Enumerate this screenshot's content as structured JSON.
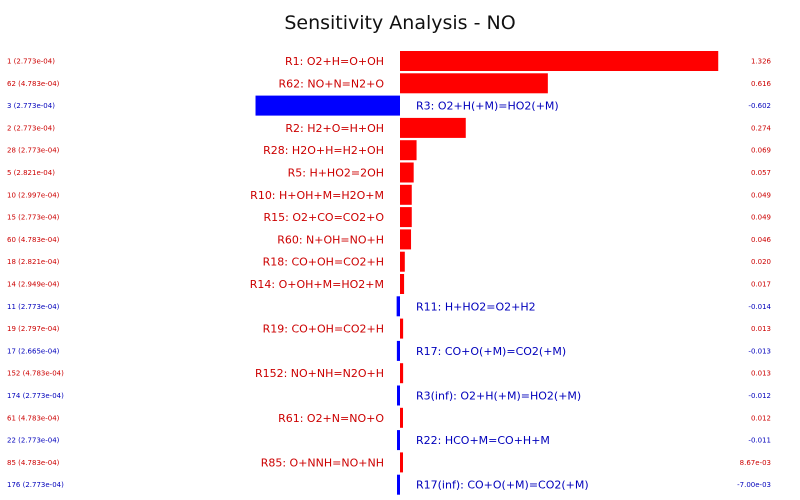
{
  "colors": {
    "positive": "#ff0000",
    "negative": "#0000ff",
    "text_pos": "#cc0000",
    "text_neg": "#0000bb"
  },
  "chart_data": {
    "type": "bar",
    "orientation": "horizontal",
    "title": "Sensitivity Analysis - NO",
    "xlim": [
      -0.602,
      1.326
    ],
    "rows": [
      {
        "index": "1 (2.773e-04)",
        "label": "R1: O2+H=O+OH",
        "value": 1.326,
        "value_text": "1.326"
      },
      {
        "index": "62 (4.783e-04)",
        "label": "R62: NO+N=N2+O",
        "value": 0.616,
        "value_text": "0.616"
      },
      {
        "index": "3 (2.773e-04)",
        "label": "R3: O2+H(+M)=HO2(+M)",
        "value": -0.602,
        "value_text": "-0.602"
      },
      {
        "index": "2 (2.773e-04)",
        "label": "R2: H2+O=H+OH",
        "value": 0.274,
        "value_text": "0.274"
      },
      {
        "index": "28 (2.773e-04)",
        "label": "R28: H2O+H=H2+OH",
        "value": 0.069,
        "value_text": "0.069"
      },
      {
        "index": "5 (2.821e-04)",
        "label": "R5: H+HO2=2OH",
        "value": 0.057,
        "value_text": "0.057"
      },
      {
        "index": "10 (2.997e-04)",
        "label": "R10: H+OH+M=H2O+M",
        "value": 0.049,
        "value_text": "0.049"
      },
      {
        "index": "15 (2.773e-04)",
        "label": "R15: O2+CO=CO2+O",
        "value": 0.049,
        "value_text": "0.049"
      },
      {
        "index": "60 (4.783e-04)",
        "label": "R60: N+OH=NO+H",
        "value": 0.046,
        "value_text": "0.046"
      },
      {
        "index": "18 (2.821e-04)",
        "label": "R18: CO+OH=CO2+H",
        "value": 0.02,
        "value_text": "0.020"
      },
      {
        "index": "14 (2.949e-04)",
        "label": "R14: O+OH+M=HO2+M",
        "value": 0.017,
        "value_text": "0.017"
      },
      {
        "index": "11 (2.773e-04)",
        "label": "R11: H+HO2=O2+H2",
        "value": -0.014,
        "value_text": "-0.014"
      },
      {
        "index": "19 (2.797e-04)",
        "label": "R19: CO+OH=CO2+H",
        "value": 0.013,
        "value_text": "0.013"
      },
      {
        "index": "17 (2.665e-04)",
        "label": "R17: CO+O(+M)=CO2(+M)",
        "value": -0.013,
        "value_text": "-0.013"
      },
      {
        "index": "152 (4.783e-04)",
        "label": "R152: NO+NH=N2O+H",
        "value": 0.013,
        "value_text": "0.013"
      },
      {
        "index": "174 (2.773e-04)",
        "label": "R3(inf): O2+H(+M)=HO2(+M)",
        "value": -0.012,
        "value_text": "-0.012"
      },
      {
        "index": "61 (4.783e-04)",
        "label": "R61: O2+N=NO+O",
        "value": 0.012,
        "value_text": "0.012"
      },
      {
        "index": "22 (2.773e-04)",
        "label": "R22: HCO+M=CO+H+M",
        "value": -0.011,
        "value_text": "-0.011"
      },
      {
        "index": "85 (4.783e-04)",
        "label": "R85: O+NNH=NO+NH",
        "value": 0.00867,
        "value_text": "8.67e-03"
      },
      {
        "index": "176 (2.773e-04)",
        "label": "R17(inf): CO+O(+M)=CO2(+M)",
        "value": -0.007,
        "value_text": "-7.00e-03"
      }
    ]
  }
}
